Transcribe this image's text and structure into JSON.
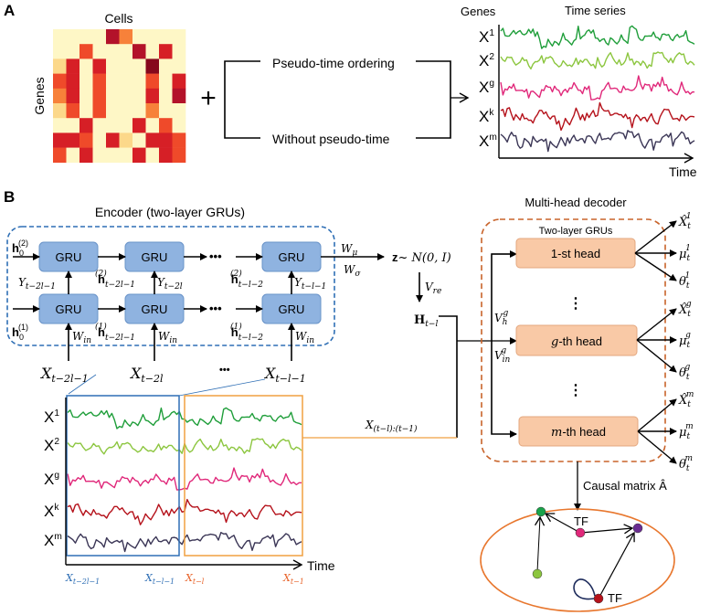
{
  "panel_a": {
    "label": "A",
    "heatmap": {
      "col_label": "Cells",
      "row_label": "Genes",
      "level_colors": [
        "#fef7c6",
        "#fcd88a",
        "#f7813a",
        "#ef4a2a",
        "#d61f26",
        "#b3122a",
        "#86081c"
      ],
      "cells": [
        [
          0,
          0,
          0,
          0,
          5,
          2,
          0,
          0,
          0,
          0
        ],
        [
          0,
          0,
          3,
          0,
          0,
          0,
          5,
          0,
          4,
          0
        ],
        [
          1,
          4,
          0,
          4,
          0,
          0,
          0,
          6,
          0,
          0
        ],
        [
          3,
          4,
          0,
          3,
          0,
          0,
          0,
          3,
          0,
          4
        ],
        [
          2,
          4,
          0,
          3,
          0,
          0,
          0,
          4,
          0,
          5
        ],
        [
          1,
          3,
          0,
          3,
          0,
          0,
          0,
          2,
          0,
          0
        ],
        [
          0,
          0,
          4,
          0,
          0,
          0,
          4,
          0,
          3,
          0
        ],
        [
          4,
          4,
          3,
          0,
          4,
          1,
          0,
          4,
          4,
          3
        ],
        [
          3,
          0,
          4,
          0,
          0,
          0,
          4,
          0,
          4,
          3
        ]
      ]
    },
    "plus": "+",
    "option_1": "Pseudo-time ordering",
    "option_2": "Without  pseudo-time",
    "series_panel": {
      "genes_label": "Genes",
      "title": "Time series",
      "time_label": "Time"
    }
  },
  "series": [
    {
      "base": "X",
      "sup": "1",
      "color": "#1f9e3a"
    },
    {
      "base": "X",
      "sup": "2",
      "color": "#8cc63f"
    },
    {
      "base": "X",
      "sup": "g",
      "color": "#e0287a"
    },
    {
      "base": "X",
      "sup": "k",
      "color": "#b5121b"
    },
    {
      "base": "X",
      "sup": "m",
      "color": "#3b3656"
    }
  ],
  "panel_b": {
    "label": "B",
    "encoder": {
      "title": "Encoder (two-layer GRUs)",
      "gru_label": "GRU",
      "dots": "•••",
      "h0_top": {
        "base": "h",
        "sub": "0",
        "sup": "(2)"
      },
      "h0_bot": {
        "base": "h",
        "sub": "0",
        "sup": "(1)"
      },
      "h_top_1": {
        "base": "h",
        "sub": "t−2l−1",
        "sup": "(2)"
      },
      "h_top_2": {
        "base": "h",
        "sub": "t−l−2",
        "sup": "(2)"
      },
      "h_bot_1": {
        "base": "h",
        "sub": "t−2l−1",
        "sup": "(1)"
      },
      "h_bot_2": {
        "base": "h",
        "sub": "t−l−2",
        "sup": "(1)"
      },
      "y_1": {
        "base": "Y",
        "sub": "t−2l−1"
      },
      "y_2": {
        "base": "Y",
        "sub": "t−2l"
      },
      "y_3": {
        "base": "Y",
        "sub": "t−l−1"
      },
      "w_in": {
        "base": "W",
        "sub": "in"
      },
      "x_1": {
        "base": "X",
        "sub": "t−2l−1"
      },
      "x_2": {
        "base": "X",
        "sub": "t−2l"
      },
      "x_3": {
        "base": "X",
        "sub": "t−l−1"
      },
      "x_dots": "•••",
      "w_mu": {
        "base": "W",
        "sub": "μ"
      },
      "w_sigma": {
        "base": "W",
        "sub": "σ"
      },
      "z": {
        "bold": "z",
        "rest": "~ N(0, I)"
      },
      "v_re": {
        "base": "V",
        "sub": "re"
      },
      "h_latent": {
        "base": "H",
        "sub": "t−l"
      }
    },
    "window": {
      "input_label": {
        "base": "X",
        "sub": "(t−l):(t−1)"
      },
      "time_label": "Time",
      "tick_1": {
        "base": "X",
        "sub": "t−2l−1",
        "color": "#2f6fb5"
      },
      "tick_2": {
        "base": "X",
        "sub": "t−l−1",
        "color": "#2f6fb5"
      },
      "tick_3": {
        "base": "X",
        "sub": "t−l",
        "color": "#e8632a"
      },
      "tick_4": {
        "base": "X",
        "sub": "t−1",
        "color": "#e8632a"
      },
      "blue_window_color": "#2f6fb5",
      "orange_window_color": "#f0a040"
    },
    "decoder": {
      "title": "Multi-head decoder",
      "subtitle": "Two-layer GRUs",
      "heads": [
        {
          "prefix": "",
          "label": "1-st head",
          "sup": "1"
        },
        {
          "prefix": "g",
          "label": "-th head",
          "sup": "g"
        },
        {
          "prefix": "m",
          "label": "-th head",
          "sup": "m"
        }
      ],
      "v_h": {
        "base": "V",
        "sub": "h",
        "sup": "g"
      },
      "v_in": {
        "base": "V",
        "sub": "in",
        "sup": "g"
      },
      "outputs": [
        "X̂",
        "μ",
        "θ"
      ],
      "out_sub": "t",
      "vdots": "⋮",
      "box_color": "#c8632a"
    },
    "causal": {
      "label": "Causal matrix Â",
      "tf_1": "TF",
      "tf_2": "TF",
      "ellipse_color": "#e8772e",
      "node_colors": [
        "#1aa34a",
        "#8cc63f",
        "#e0287a",
        "#6a2c91",
        "#b5121b"
      ]
    }
  }
}
